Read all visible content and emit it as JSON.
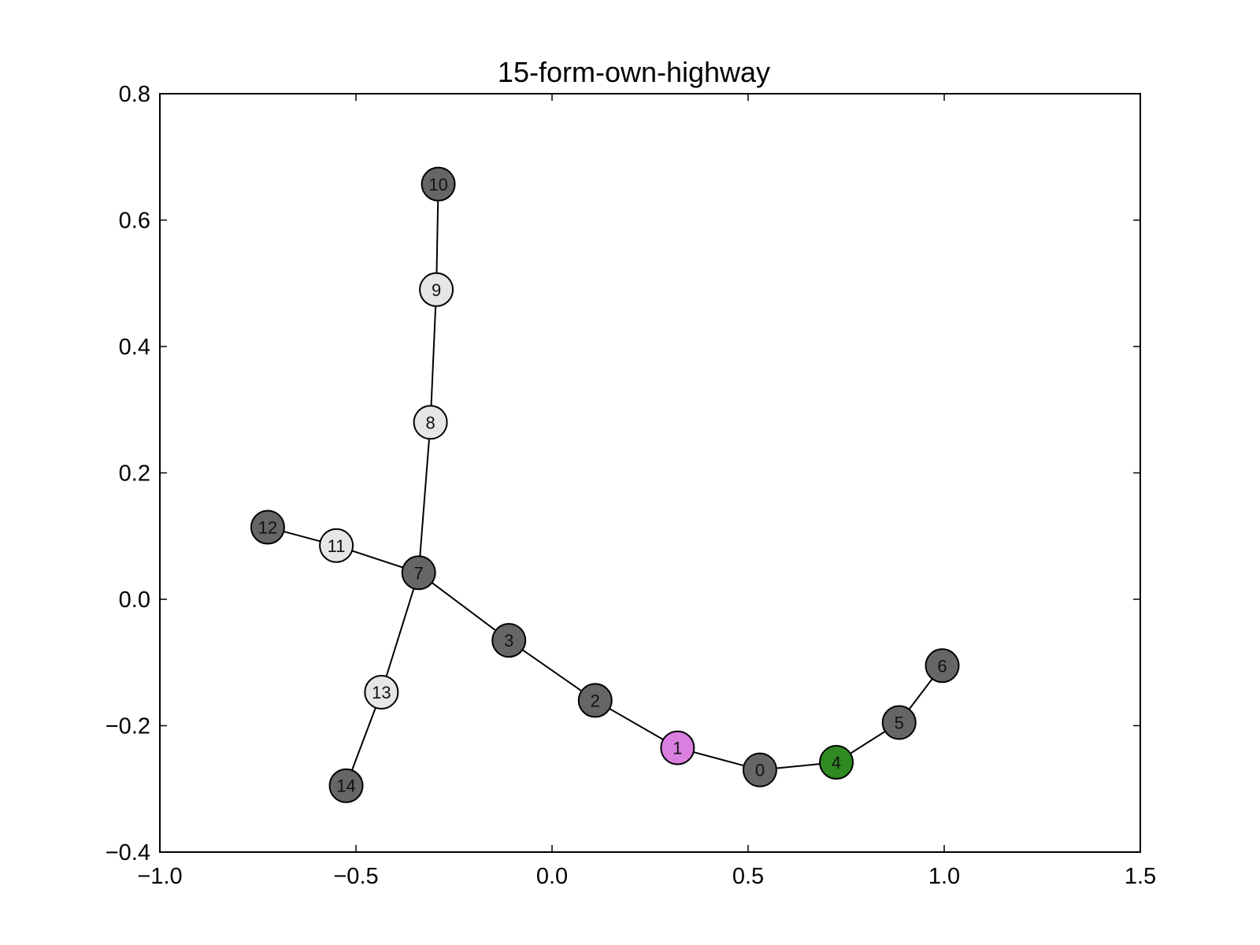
{
  "chart_data": {
    "type": "network",
    "title": "15-form-own-highway",
    "xlim": [
      -1.0,
      1.5
    ],
    "ylim": [
      -0.4,
      0.8
    ],
    "x_ticks": [
      -1.0,
      -0.5,
      0.0,
      0.5,
      1.0,
      1.5
    ],
    "x_tick_labels": [
      "−1.0",
      "−0.5",
      "0.0",
      "0.5",
      "1.0",
      "1.5"
    ],
    "y_ticks": [
      -0.4,
      -0.2,
      0.0,
      0.2,
      0.4,
      0.6,
      0.8
    ],
    "y_tick_labels": [
      "−0.4",
      "−0.2",
      "0.0",
      "0.2",
      "0.4",
      "0.6",
      "0.8"
    ],
    "grid": false,
    "nodes": [
      {
        "id": "0",
        "x": 0.53,
        "y": -0.27,
        "color": "#666666"
      },
      {
        "id": "1",
        "x": 0.32,
        "y": -0.235,
        "color": "#da7fe0"
      },
      {
        "id": "2",
        "x": 0.11,
        "y": -0.16,
        "color": "#666666"
      },
      {
        "id": "3",
        "x": -0.11,
        "y": -0.065,
        "color": "#666666"
      },
      {
        "id": "4",
        "x": 0.725,
        "y": -0.258,
        "color": "#2f8a22"
      },
      {
        "id": "5",
        "x": 0.885,
        "y": -0.195,
        "color": "#666666"
      },
      {
        "id": "6",
        "x": 0.995,
        "y": -0.105,
        "color": "#666666"
      },
      {
        "id": "7",
        "x": -0.34,
        "y": 0.042,
        "color": "#666666"
      },
      {
        "id": "8",
        "x": -0.31,
        "y": 0.28,
        "color": "#e6e6e6"
      },
      {
        "id": "9",
        "x": -0.295,
        "y": 0.49,
        "color": "#e6e6e6"
      },
      {
        "id": "10",
        "x": -0.29,
        "y": 0.657,
        "color": "#666666"
      },
      {
        "id": "11",
        "x": -0.55,
        "y": 0.085,
        "color": "#e6e6e6"
      },
      {
        "id": "12",
        "x": -0.725,
        "y": 0.114,
        "color": "#666666"
      },
      {
        "id": "13",
        "x": -0.435,
        "y": -0.147,
        "color": "#e6e6e6"
      },
      {
        "id": "14",
        "x": -0.525,
        "y": -0.295,
        "color": "#666666"
      }
    ],
    "edges": [
      [
        "0",
        "1"
      ],
      [
        "0",
        "4"
      ],
      [
        "1",
        "2"
      ],
      [
        "2",
        "3"
      ],
      [
        "3",
        "7"
      ],
      [
        "4",
        "5"
      ],
      [
        "5",
        "6"
      ],
      [
        "7",
        "8"
      ],
      [
        "8",
        "9"
      ],
      [
        "9",
        "10"
      ],
      [
        "7",
        "11"
      ],
      [
        "11",
        "12"
      ],
      [
        "7",
        "13"
      ],
      [
        "13",
        "14"
      ]
    ]
  }
}
